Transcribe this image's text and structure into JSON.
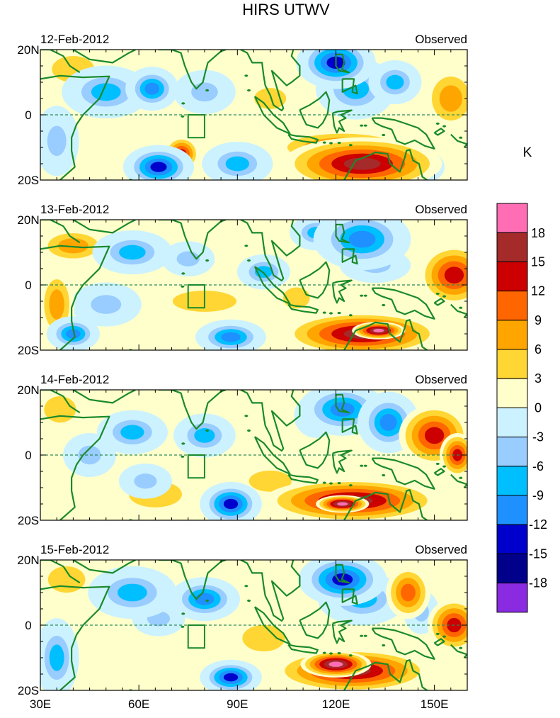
{
  "chart_data": {
    "type": "heatmap",
    "title": "HIRS UTWV",
    "unit_label": "K",
    "x_ticks": [
      "30E",
      "60E",
      "90E",
      "120E",
      "150E"
    ],
    "x_tick_values": [
      30,
      60,
      90,
      120,
      150
    ],
    "x_range": [
      30,
      160
    ],
    "y_ticks": [
      "20N",
      "0",
      "20S"
    ],
    "y_tick_values": [
      20,
      0,
      -20
    ],
    "y_range": [
      -20,
      20
    ],
    "colorbar": {
      "labels": [
        "18",
        "15",
        "12",
        "9",
        "6",
        "3",
        "0",
        "-3",
        "-6",
        "-9",
        "-12",
        "-15",
        "-18"
      ],
      "levels": [
        18,
        15,
        12,
        9,
        6,
        3,
        0,
        -3,
        -6,
        -9,
        -12,
        -15,
        -18
      ],
      "colors": [
        "#ff6eb4",
        "#a52a2a",
        "#cc0000",
        "#ff6600",
        "#ffa500",
        "#ffd633",
        "#ffffcc",
        "#ccf2ff",
        "#99ccff",
        "#00bfff",
        "#1e90ff",
        "#0000cd",
        "#00008b",
        "#8a2be2"
      ]
    },
    "box_region": {
      "lon": [
        75,
        80
      ],
      "lat": [
        -7,
        0
      ]
    },
    "equator_line": true,
    "panels": [
      {
        "date": "12-Feb-2012",
        "label": "Observed",
        "blobs": [
          {
            "lon": 120,
            "lat": 16,
            "rlon": 9,
            "rlat": 6,
            "v": -15
          },
          {
            "lon": 126,
            "lat": 8,
            "rlon": 9,
            "rlat": 7,
            "v": -9
          },
          {
            "lon": 138,
            "lat": 10,
            "rlon": 6,
            "rlat": 5,
            "v": -9
          },
          {
            "lon": 50,
            "lat": 7,
            "rlon": 10,
            "rlat": 6,
            "v": -9
          },
          {
            "lon": 64,
            "lat": 8,
            "rlon": 6,
            "rlat": 5,
            "v": -12
          },
          {
            "lon": 80,
            "lat": 7,
            "rlon": 7,
            "rlat": 5,
            "v": -6
          },
          {
            "lon": 66,
            "lat": -16,
            "rlon": 8,
            "rlat": 5,
            "v": -15
          },
          {
            "lon": 90,
            "lat": -15,
            "rlon": 8,
            "rlat": 5,
            "v": -9
          },
          {
            "lon": 35,
            "lat": -8,
            "rlon": 5,
            "rlat": 8,
            "v": -6
          },
          {
            "lon": 128,
            "lat": -15,
            "rlon": 18,
            "rlat": 6,
            "v": 15
          },
          {
            "lon": 122,
            "lat": -10,
            "rlon": 16,
            "rlat": 4,
            "v": 9
          },
          {
            "lon": 73,
            "lat": -12,
            "rlon": 4,
            "rlat": 4,
            "v": 12
          },
          {
            "lon": 155,
            "lat": 5,
            "rlon": 6,
            "rlat": 7,
            "v": 6
          },
          {
            "lon": 40,
            "lat": 14,
            "rlon": 8,
            "rlat": 5,
            "v": 4
          },
          {
            "lon": 100,
            "lat": 5,
            "rlon": 6,
            "rlat": 4,
            "v": 3
          },
          {
            "lon": 145,
            "lat": -16,
            "rlon": 6,
            "rlat": 4,
            "v": -6
          }
        ]
      },
      {
        "date": "13-Feb-2012",
        "label": "Observed",
        "blobs": [
          {
            "lon": 128,
            "lat": 14,
            "rlon": 11,
            "rlat": 7,
            "v": -12
          },
          {
            "lon": 114,
            "lat": 16,
            "rlon": 6,
            "rlat": 4,
            "v": -9
          },
          {
            "lon": 132,
            "lat": 6,
            "rlon": 8,
            "rlat": 4,
            "v": -6
          },
          {
            "lon": 58,
            "lat": 10,
            "rlon": 9,
            "rlat": 5,
            "v": -9
          },
          {
            "lon": 75,
            "lat": 8,
            "rlon": 6,
            "rlat": 4,
            "v": -6
          },
          {
            "lon": 50,
            "lat": -6,
            "rlon": 8,
            "rlat": 5,
            "v": -6
          },
          {
            "lon": 40,
            "lat": -15,
            "rlon": 6,
            "rlat": 4,
            "v": -12
          },
          {
            "lon": 88,
            "lat": -16,
            "rlon": 8,
            "rlat": 4,
            "v": -12
          },
          {
            "lon": 98,
            "lat": 4,
            "rlon": 6,
            "rlat": 4,
            "v": -9
          },
          {
            "lon": 128,
            "lat": -15,
            "rlon": 18,
            "rlat": 5,
            "v": 15
          },
          {
            "lon": 133,
            "lat": -14,
            "rlon": 6,
            "rlat": 2,
            "v": 18
          },
          {
            "lon": 156,
            "lat": 3,
            "rlon": 8,
            "rlat": 7,
            "v": 12
          },
          {
            "lon": 40,
            "lat": 12,
            "rlon": 8,
            "rlat": 4,
            "v": 6
          },
          {
            "lon": 80,
            "lat": -5,
            "rlon": 12,
            "rlat": 4,
            "v": 5
          },
          {
            "lon": 35,
            "lat": -6,
            "rlon": 4,
            "rlat": 8,
            "v": 6
          },
          {
            "lon": 108,
            "lat": -4,
            "rlon": 5,
            "rlat": 4,
            "v": 4
          }
        ]
      },
      {
        "date": "14-Feb-2012",
        "label": "Observed",
        "blobs": [
          {
            "lon": 122,
            "lat": 14,
            "rlon": 10,
            "rlat": 6,
            "v": -12
          },
          {
            "lon": 136,
            "lat": 10,
            "rlon": 7,
            "rlat": 7,
            "v": -12
          },
          {
            "lon": 114,
            "lat": 12,
            "rlon": 5,
            "rlat": 5,
            "v": -9
          },
          {
            "lon": 58,
            "lat": 7,
            "rlon": 8,
            "rlat": 5,
            "v": -9
          },
          {
            "lon": 80,
            "lat": 6,
            "rlon": 7,
            "rlat": 5,
            "v": -9
          },
          {
            "lon": 88,
            "lat": -15,
            "rlon": 7,
            "rlat": 5,
            "v": -15
          },
          {
            "lon": 45,
            "lat": 0,
            "rlon": 6,
            "rlat": 5,
            "v": -6
          },
          {
            "lon": 62,
            "lat": -8,
            "rlon": 6,
            "rlat": 4,
            "v": -6
          },
          {
            "lon": 125,
            "lat": -14,
            "rlon": 20,
            "rlat": 5,
            "v": 15
          },
          {
            "lon": 122,
            "lat": -15,
            "rlon": 6,
            "rlat": 2,
            "v": 18
          },
          {
            "lon": 150,
            "lat": 6,
            "rlon": 8,
            "rlat": 7,
            "v": 12
          },
          {
            "lon": 157,
            "lat": 0,
            "rlon": 4,
            "rlat": 5,
            "v": 12
          },
          {
            "lon": 65,
            "lat": -12,
            "rlon": 10,
            "rlat": 5,
            "v": 4
          },
          {
            "lon": 36,
            "lat": 14,
            "rlon": 6,
            "rlat": 5,
            "v": 5
          },
          {
            "lon": 100,
            "lat": -8,
            "rlon": 8,
            "rlat": 4,
            "v": 3
          }
        ]
      },
      {
        "date": "15-Feb-2012",
        "label": "Observed",
        "blobs": [
          {
            "lon": 122,
            "lat": 14,
            "rlon": 10,
            "rlat": 6,
            "v": -15
          },
          {
            "lon": 128,
            "lat": 8,
            "rlon": 10,
            "rlat": 6,
            "v": -9
          },
          {
            "lon": 58,
            "lat": 10,
            "rlon": 10,
            "rlat": 6,
            "v": -9
          },
          {
            "lon": 80,
            "lat": 8,
            "rlon": 8,
            "rlat": 5,
            "v": -12
          },
          {
            "lon": 66,
            "lat": 2,
            "rlon": 6,
            "rlat": 4,
            "v": -6
          },
          {
            "lon": 88,
            "lat": -16,
            "rlon": 7,
            "rlat": 4,
            "v": -15
          },
          {
            "lon": 35,
            "lat": -10,
            "rlon": 5,
            "rlat": 9,
            "v": -9
          },
          {
            "lon": 146,
            "lat": 4,
            "rlon": 4,
            "rlat": 5,
            "v": -6
          },
          {
            "lon": 125,
            "lat": -14,
            "rlon": 18,
            "rlat": 5,
            "v": 15
          },
          {
            "lon": 120,
            "lat": -12,
            "rlon": 8,
            "rlat": 3,
            "v": 18
          },
          {
            "lon": 156,
            "lat": 0,
            "rlon": 6,
            "rlat": 6,
            "v": 12
          },
          {
            "lon": 142,
            "lat": 10,
            "rlon": 5,
            "rlat": 6,
            "v": 9
          },
          {
            "lon": 38,
            "lat": 14,
            "rlon": 7,
            "rlat": 5,
            "v": 5
          },
          {
            "lon": 98,
            "lat": -4,
            "rlon": 8,
            "rlat": 5,
            "v": 3
          }
        ]
      }
    ]
  }
}
